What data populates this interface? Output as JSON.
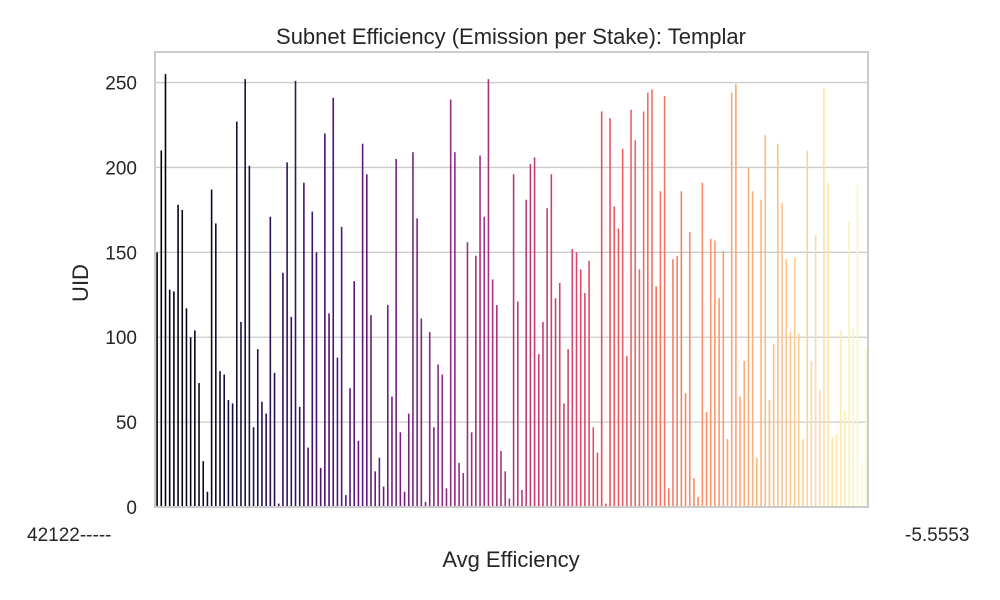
{
  "chart_data": {
    "type": "bar",
    "title": "Subnet Efficiency (Emission per Stake): Templar",
    "xlabel": "Avg Efficiency",
    "ylabel": "UID",
    "ylim": [
      0,
      268
    ],
    "yticks": [
      0,
      50,
      100,
      150,
      200,
      250
    ],
    "grid": "horizontal",
    "legend": "none",
    "palette": "magma",
    "bar_count": 170,
    "x_tick_labels_left": "42122-----",
    "x_tick_labels_right": "-5.5553",
    "values": [
      150,
      210,
      255,
      128,
      127,
      178,
      175,
      117,
      100,
      104,
      73,
      27,
      9,
      187,
      167,
      80,
      78,
      63,
      61,
      227,
      109,
      252,
      201,
      47,
      93,
      62,
      55,
      171,
      79,
      2,
      138,
      203,
      112,
      251,
      59,
      191,
      35,
      174,
      150,
      23,
      220,
      114,
      241,
      88,
      165,
      7,
      70,
      133,
      39,
      214,
      196,
      113,
      21,
      29,
      12,
      119,
      65,
      205,
      44,
      9,
      55,
      209,
      170,
      111,
      3,
      103,
      47,
      84,
      78,
      11,
      240,
      209,
      26,
      20,
      156,
      44,
      148,
      207,
      171,
      252,
      134,
      119,
      33,
      21,
      5,
      196,
      121,
      10,
      181,
      202,
      206,
      90,
      109,
      176,
      196,
      123,
      132,
      61,
      93,
      152,
      150,
      140,
      126,
      145,
      47,
      32,
      233,
      2,
      229,
      177,
      164,
      211,
      89,
      234,
      216,
      140,
      233,
      244,
      246,
      130,
      186,
      242,
      11,
      146,
      148,
      186,
      67,
      162,
      17,
      6,
      191,
      56,
      158,
      157,
      123,
      151,
      40,
      244,
      249,
      65,
      86,
      200,
      186,
      29,
      181,
      219,
      63,
      96,
      214,
      179,
      146,
      103,
      147,
      102,
      40,
      210,
      86,
      160,
      69,
      247,
      191,
      41,
      43,
      104,
      57,
      168,
      105,
      190,
      26,
      93
    ]
  }
}
